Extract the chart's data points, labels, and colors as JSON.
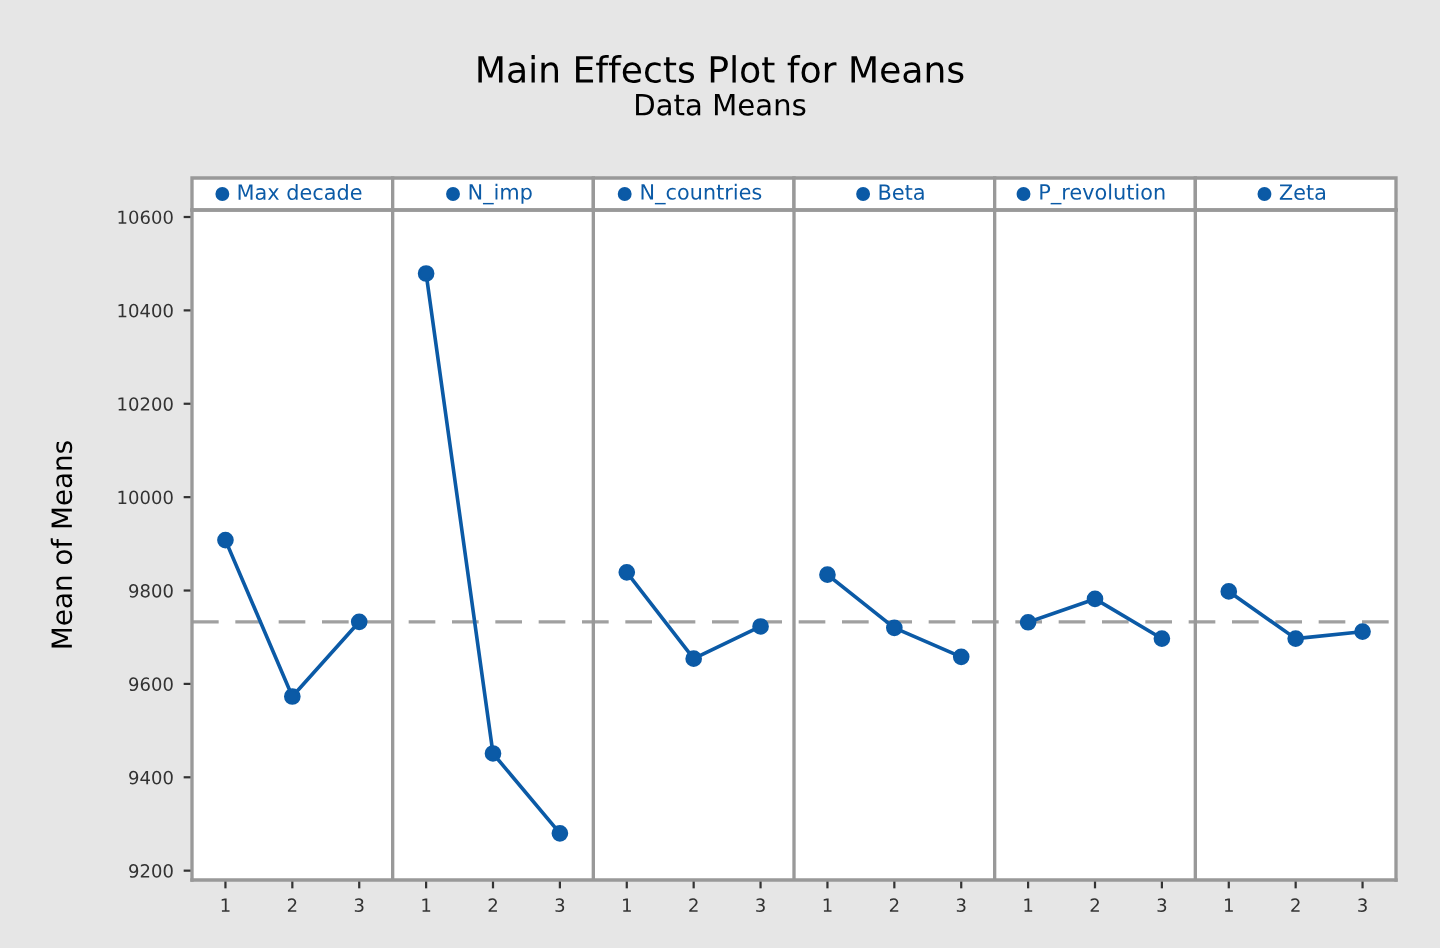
{
  "chart_data": {
    "type": "line",
    "title": "Main Effects Plot for Means",
    "subtitle": "Data Means",
    "ylabel": "Mean of Means",
    "categories": [
      "1",
      "2",
      "3",
      "1",
      "2",
      "3",
      "1",
      "2",
      "3",
      "1",
      "2",
      "3",
      "1",
      "2",
      "3",
      "1",
      "2",
      "3"
    ],
    "series": [
      {
        "name": "Max decade",
        "color": "#0b5aa6",
        "values": [
          9908,
          9573,
          9733,
          null,
          null,
          null,
          null,
          null,
          null,
          null,
          null,
          null,
          null,
          null,
          null,
          null,
          null,
          null
        ]
      },
      {
        "name": "N_imp",
        "color": "#0b5aa6",
        "values": [
          null,
          null,
          null,
          10479,
          9451,
          9280,
          null,
          null,
          null,
          null,
          null,
          null,
          null,
          null,
          null,
          null,
          null,
          null
        ]
      },
      {
        "name": "N_countries",
        "color": "#0b5aa6",
        "values": [
          null,
          null,
          null,
          null,
          null,
          null,
          9839,
          9654,
          9723,
          null,
          null,
          null,
          null,
          null,
          null,
          null,
          null,
          null
        ]
      },
      {
        "name": "Beta",
        "color": "#0b5aa6",
        "values": [
          null,
          null,
          null,
          null,
          null,
          null,
          null,
          null,
          null,
          9834,
          9720,
          9658,
          null,
          null,
          null,
          null,
          null,
          null
        ]
      },
      {
        "name": "P_revolution",
        "color": "#0b5aa6",
        "values": [
          null,
          null,
          null,
          null,
          null,
          null,
          null,
          null,
          null,
          null,
          null,
          null,
          9732,
          9782,
          9697,
          null,
          null,
          null
        ]
      },
      {
        "name": "Zeta",
        "color": "#0b5aa6",
        "values": [
          null,
          null,
          null,
          null,
          null,
          null,
          null,
          null,
          null,
          null,
          null,
          null,
          null,
          null,
          null,
          9798,
          9697,
          9712
        ]
      }
    ],
    "ylim": [
      9180,
      10615
    ],
    "yticks": [
      9200,
      9400,
      9600,
      9800,
      10000,
      10200,
      10400,
      10600
    ],
    "ref_lines": [
      {
        "axis": "y",
        "value": 9733,
        "color": "#a0a0a0",
        "line_style": "dashed"
      }
    ],
    "marker": "circle",
    "grid": false,
    "legend": "top"
  }
}
